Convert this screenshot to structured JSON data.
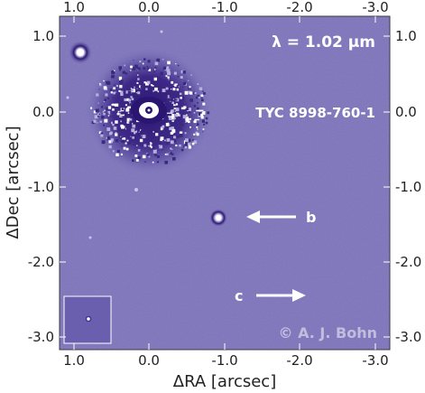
{
  "image": {
    "background_color": "#7a71b8",
    "speckle_light": "#b6b0de",
    "speckle_dark": "#3a2a7e",
    "frame_color": "#3a3a3a"
  },
  "axes": {
    "x_label": "ΔRA [arcsec]",
    "y_label": "ΔDec [arcsec]",
    "x_ticks_top": [
      "1.0",
      "0.0",
      "-1.0",
      "-2.0",
      "-3.0"
    ],
    "x_ticks_bottom": [
      "1.0",
      "0.0",
      "-1.0",
      "-2.0",
      "-3.0"
    ],
    "y_ticks_left": [
      "1.0",
      "0.0",
      "-1.0",
      "-2.0",
      "-3.0"
    ],
    "y_ticks_right": [
      "1.0",
      "0.0",
      "-1.0",
      "-2.0",
      "-3.0"
    ]
  },
  "annotations": {
    "wavelength": "λ = 1.02 μm",
    "target_name": "TYC 8998-760-1",
    "companion_b": "b",
    "companion_c": "c",
    "copyright": "© A. J. Bohn"
  },
  "icons": {
    "arrow_b": "left-arrow-icon",
    "arrow_c": "right-arrow-icon"
  }
}
